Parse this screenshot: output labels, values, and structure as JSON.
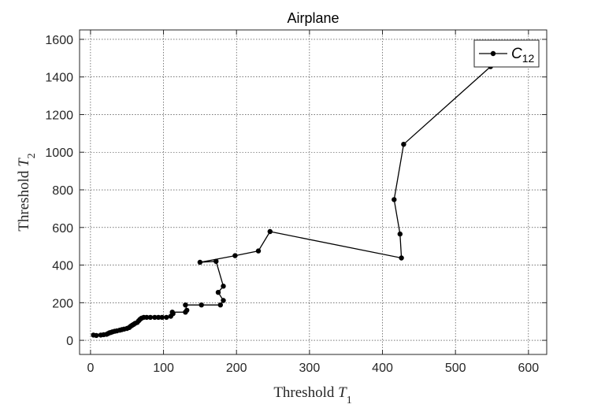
{
  "chart_data": {
    "type": "line",
    "title": "Airplane",
    "xlabel": {
      "text": "Threshold ",
      "var": "T",
      "sub": "1"
    },
    "ylabel": {
      "text": "Threshold ",
      "var": "T",
      "sub": "2"
    },
    "xlim": [
      -15,
      625
    ],
    "ylim": [
      -75,
      1650
    ],
    "xticks": [
      0,
      100,
      200,
      300,
      400,
      500,
      600
    ],
    "yticks": [
      0,
      200,
      400,
      600,
      800,
      1000,
      1200,
      1400,
      1600
    ],
    "grid": true,
    "legend": {
      "position": "top-right",
      "label_main": "C",
      "label_sub": "12"
    },
    "series": [
      {
        "name": "C12",
        "color": "#000000",
        "marker": "dot",
        "points": [
          [
            4,
            28
          ],
          [
            8,
            26
          ],
          [
            14,
            28
          ],
          [
            18,
            30
          ],
          [
            22,
            32
          ],
          [
            24,
            36
          ],
          [
            26,
            40
          ],
          [
            28,
            42
          ],
          [
            30,
            45
          ],
          [
            33,
            48
          ],
          [
            36,
            50
          ],
          [
            40,
            54
          ],
          [
            43,
            57
          ],
          [
            46,
            60
          ],
          [
            50,
            63
          ],
          [
            53,
            68
          ],
          [
            55,
            75
          ],
          [
            57,
            80
          ],
          [
            59,
            85
          ],
          [
            61,
            90
          ],
          [
            64,
            95
          ],
          [
            66,
            104
          ],
          [
            68,
            112
          ],
          [
            70,
            118
          ],
          [
            73,
            122
          ],
          [
            77,
            122
          ],
          [
            82,
            122
          ],
          [
            88,
            122
          ],
          [
            93,
            122
          ],
          [
            98,
            122
          ],
          [
            104,
            122
          ],
          [
            110,
            128
          ],
          [
            113,
            142
          ],
          [
            112,
            150
          ],
          [
            130,
            150
          ],
          [
            132,
            160
          ],
          [
            130,
            188
          ],
          [
            152,
            188
          ],
          [
            178,
            188
          ],
          [
            182,
            212
          ],
          [
            175,
            255
          ],
          [
            182,
            288
          ],
          [
            172,
            420
          ],
          [
            150,
            415
          ],
          [
            198,
            450
          ],
          [
            230,
            475
          ],
          [
            246,
            578
          ],
          [
            426,
            438
          ],
          [
            424,
            565
          ],
          [
            416,
            748
          ],
          [
            429,
            1042
          ],
          [
            548,
            1455
          ]
        ]
      }
    ]
  }
}
